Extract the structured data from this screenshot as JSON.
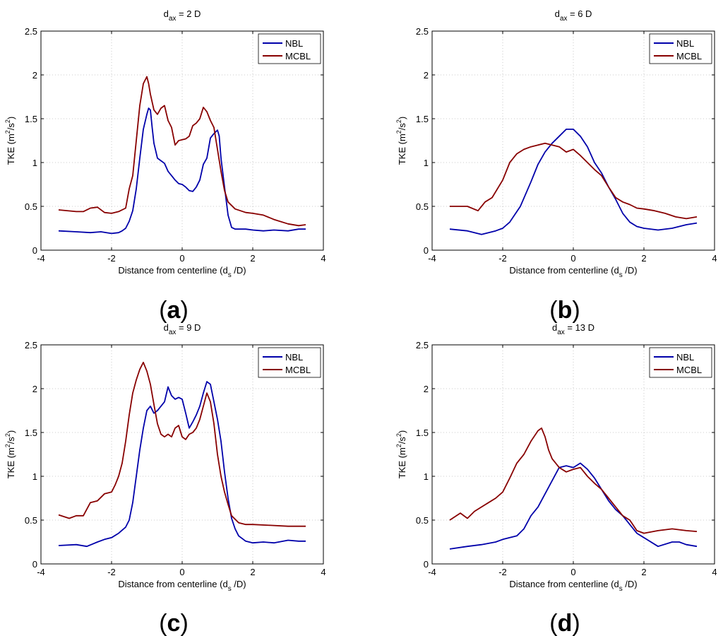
{
  "chart_data": [
    {
      "type": "line",
      "panel_label": "a",
      "title": {
        "base": "d",
        "sub": "ax",
        "rest": " = 2 D"
      },
      "xlabel": {
        "pre": "Distance from centerline (d",
        "sub": "s",
        "post": " /D)"
      },
      "ylabel": {
        "pre": "TKE (m",
        "sup1": "2",
        "mid": "/s",
        "sup2": "2",
        "post": ")"
      },
      "xlim": [
        -4,
        4
      ],
      "ylim": [
        0,
        2.5
      ],
      "xticks": [
        -4,
        -2,
        0,
        2,
        4
      ],
      "yticks": [
        0,
        0.5,
        1,
        1.5,
        2,
        2.5
      ],
      "grid": true,
      "legend_position": "top-right",
      "series": [
        {
          "name": "NBL",
          "color": "#0000aa",
          "x": [
            -3.5,
            -3.0,
            -2.6,
            -2.3,
            -2.0,
            -1.8,
            -1.7,
            -1.6,
            -1.5,
            -1.4,
            -1.3,
            -1.2,
            -1.1,
            -1.0,
            -0.95,
            -0.9,
            -0.85,
            -0.8,
            -0.7,
            -0.6,
            -0.5,
            -0.4,
            -0.3,
            -0.2,
            -0.1,
            0.0,
            0.1,
            0.2,
            0.3,
            0.4,
            0.5,
            0.6,
            0.7,
            0.8,
            0.9,
            1.0,
            1.05,
            1.1,
            1.2,
            1.3,
            1.4,
            1.5,
            1.8,
            2.0,
            2.3,
            2.6,
            3.0,
            3.3,
            3.5
          ],
          "values": [
            0.22,
            0.21,
            0.2,
            0.21,
            0.19,
            0.2,
            0.22,
            0.25,
            0.33,
            0.45,
            0.7,
            1.05,
            1.38,
            1.55,
            1.62,
            1.6,
            1.4,
            1.22,
            1.05,
            1.02,
            0.99,
            0.9,
            0.85,
            0.8,
            0.76,
            0.75,
            0.72,
            0.68,
            0.67,
            0.72,
            0.8,
            0.98,
            1.05,
            1.28,
            1.33,
            1.37,
            1.3,
            1.05,
            0.72,
            0.4,
            0.26,
            0.24,
            0.24,
            0.23,
            0.22,
            0.23,
            0.22,
            0.24,
            0.24
          ]
        },
        {
          "name": "MCBL",
          "color": "#880000",
          "x": [
            -3.5,
            -3.0,
            -2.8,
            -2.6,
            -2.4,
            -2.2,
            -2.0,
            -1.8,
            -1.6,
            -1.5,
            -1.4,
            -1.3,
            -1.2,
            -1.1,
            -1.0,
            -0.95,
            -0.9,
            -0.8,
            -0.7,
            -0.6,
            -0.5,
            -0.4,
            -0.3,
            -0.2,
            -0.1,
            0.0,
            0.1,
            0.2,
            0.3,
            0.4,
            0.5,
            0.6,
            0.7,
            0.8,
            0.9,
            1.0,
            1.1,
            1.2,
            1.3,
            1.5,
            1.8,
            2.0,
            2.3,
            2.6,
            3.0,
            3.3,
            3.5
          ],
          "values": [
            0.46,
            0.44,
            0.44,
            0.48,
            0.49,
            0.43,
            0.42,
            0.44,
            0.48,
            0.7,
            0.85,
            1.25,
            1.65,
            1.9,
            1.98,
            1.9,
            1.78,
            1.6,
            1.55,
            1.62,
            1.65,
            1.48,
            1.4,
            1.2,
            1.25,
            1.26,
            1.27,
            1.3,
            1.42,
            1.45,
            1.5,
            1.63,
            1.58,
            1.48,
            1.4,
            1.15,
            0.9,
            0.68,
            0.55,
            0.47,
            0.43,
            0.42,
            0.4,
            0.35,
            0.3,
            0.28,
            0.29
          ]
        }
      ]
    },
    {
      "type": "line",
      "panel_label": "b",
      "title": {
        "base": "d",
        "sub": "ax",
        "rest": " = 6 D"
      },
      "xlabel": {
        "pre": "Distance from centerline (d",
        "sub": "s",
        "post": " /D)"
      },
      "ylabel": {
        "pre": "TKE (m",
        "sup1": "2",
        "mid": "/s",
        "sup2": "2",
        "post": ")"
      },
      "xlim": [
        -4,
        4
      ],
      "ylim": [
        0,
        2.5
      ],
      "xticks": [
        -4,
        -2,
        0,
        2,
        4
      ],
      "yticks": [
        0,
        0.5,
        1,
        1.5,
        2,
        2.5
      ],
      "grid": true,
      "legend_position": "top-right",
      "series": [
        {
          "name": "NBL",
          "color": "#0000aa",
          "x": [
            -3.5,
            -3.0,
            -2.6,
            -2.2,
            -2.0,
            -1.8,
            -1.5,
            -1.2,
            -1.0,
            -0.8,
            -0.6,
            -0.4,
            -0.2,
            0.0,
            0.2,
            0.4,
            0.6,
            0.8,
            1.0,
            1.2,
            1.4,
            1.6,
            1.8,
            2.0,
            2.4,
            2.8,
            3.2,
            3.5
          ],
          "values": [
            0.24,
            0.22,
            0.18,
            0.22,
            0.25,
            0.32,
            0.5,
            0.78,
            0.98,
            1.12,
            1.22,
            1.3,
            1.38,
            1.38,
            1.3,
            1.18,
            1.0,
            0.88,
            0.72,
            0.58,
            0.42,
            0.32,
            0.27,
            0.25,
            0.23,
            0.25,
            0.29,
            0.31
          ]
        },
        {
          "name": "MCBL",
          "color": "#880000",
          "x": [
            -3.5,
            -3.0,
            -2.7,
            -2.5,
            -2.3,
            -2.0,
            -1.8,
            -1.6,
            -1.4,
            -1.2,
            -1.0,
            -0.8,
            -0.6,
            -0.4,
            -0.2,
            0.0,
            0.2,
            0.4,
            0.6,
            0.8,
            1.0,
            1.2,
            1.4,
            1.6,
            1.8,
            2.0,
            2.3,
            2.6,
            2.9,
            3.2,
            3.5
          ],
          "values": [
            0.5,
            0.5,
            0.45,
            0.55,
            0.6,
            0.8,
            1.0,
            1.1,
            1.15,
            1.18,
            1.2,
            1.22,
            1.2,
            1.18,
            1.12,
            1.15,
            1.08,
            1.0,
            0.92,
            0.85,
            0.72,
            0.6,
            0.55,
            0.52,
            0.48,
            0.47,
            0.45,
            0.42,
            0.38,
            0.36,
            0.38
          ]
        }
      ]
    },
    {
      "type": "line",
      "panel_label": "c",
      "title": {
        "base": "d",
        "sub": "ax",
        "rest": " = 9 D"
      },
      "xlabel": {
        "pre": "Distance from centerline (d",
        "sub": "s",
        "post": " /D)"
      },
      "ylabel": {
        "pre": "TKE (m",
        "sup1": "2",
        "mid": "/s",
        "sup2": "2",
        "post": ")"
      },
      "xlim": [
        -4,
        4
      ],
      "ylim": [
        0,
        2.5
      ],
      "xticks": [
        -4,
        -2,
        0,
        2,
        4
      ],
      "yticks": [
        0,
        0.5,
        1,
        1.5,
        2,
        2.5
      ],
      "grid": true,
      "legend_position": "top-right",
      "series": [
        {
          "name": "NBL",
          "color": "#0000aa",
          "x": [
            -3.5,
            -3.0,
            -2.7,
            -2.4,
            -2.2,
            -2.0,
            -1.8,
            -1.6,
            -1.5,
            -1.4,
            -1.3,
            -1.2,
            -1.1,
            -1.0,
            -0.9,
            -0.8,
            -0.7,
            -0.6,
            -0.5,
            -0.4,
            -0.3,
            -0.2,
            -0.1,
            0.0,
            0.1,
            0.2,
            0.3,
            0.4,
            0.5,
            0.6,
            0.7,
            0.8,
            0.9,
            1.0,
            1.1,
            1.2,
            1.3,
            1.4,
            1.5,
            1.6,
            1.8,
            2.0,
            2.3,
            2.6,
            3.0,
            3.3,
            3.5
          ],
          "values": [
            0.21,
            0.22,
            0.2,
            0.25,
            0.28,
            0.3,
            0.35,
            0.42,
            0.5,
            0.7,
            1.0,
            1.3,
            1.55,
            1.75,
            1.8,
            1.72,
            1.75,
            1.8,
            1.85,
            2.02,
            1.92,
            1.88,
            1.9,
            1.88,
            1.72,
            1.55,
            1.62,
            1.7,
            1.8,
            1.95,
            2.08,
            2.05,
            1.85,
            1.65,
            1.4,
            1.05,
            0.75,
            0.52,
            0.4,
            0.32,
            0.26,
            0.24,
            0.25,
            0.24,
            0.27,
            0.26,
            0.26
          ]
        },
        {
          "name": "MCBL",
          "color": "#880000",
          "x": [
            -3.5,
            -3.2,
            -3.0,
            -2.8,
            -2.6,
            -2.4,
            -2.2,
            -2.0,
            -1.9,
            -1.8,
            -1.7,
            -1.6,
            -1.5,
            -1.4,
            -1.3,
            -1.2,
            -1.1,
            -1.0,
            -0.9,
            -0.8,
            -0.7,
            -0.6,
            -0.5,
            -0.4,
            -0.3,
            -0.2,
            -0.1,
            0.0,
            0.1,
            0.2,
            0.3,
            0.4,
            0.5,
            0.6,
            0.7,
            0.8,
            0.9,
            1.0,
            1.1,
            1.2,
            1.3,
            1.4,
            1.6,
            1.8,
            2.0,
            2.5,
            3.0,
            3.5
          ],
          "values": [
            0.56,
            0.52,
            0.55,
            0.55,
            0.7,
            0.72,
            0.8,
            0.82,
            0.9,
            1.0,
            1.15,
            1.4,
            1.7,
            1.95,
            2.1,
            2.22,
            2.3,
            2.2,
            2.05,
            1.82,
            1.6,
            1.48,
            1.45,
            1.48,
            1.45,
            1.55,
            1.58,
            1.45,
            1.42,
            1.48,
            1.5,
            1.55,
            1.65,
            1.8,
            1.95,
            1.85,
            1.6,
            1.25,
            1.0,
            0.82,
            0.68,
            0.55,
            0.47,
            0.45,
            0.45,
            0.44,
            0.43,
            0.43
          ]
        }
      ]
    },
    {
      "type": "line",
      "panel_label": "d",
      "title": {
        "base": "d",
        "sub": "ax",
        "rest": " = 13 D"
      },
      "xlabel": {
        "pre": "Distance from centerline (d",
        "sub": "s",
        "post": " /D)"
      },
      "ylabel": {
        "pre": "TKE (m",
        "sup1": "2",
        "mid": "/s",
        "sup2": "2",
        "post": ")"
      },
      "xlim": [
        -4,
        4
      ],
      "ylim": [
        0,
        2.5
      ],
      "xticks": [
        -4,
        -2,
        0,
        2,
        4
      ],
      "yticks": [
        0,
        0.5,
        1,
        1.5,
        2,
        2.5
      ],
      "grid": true,
      "legend_position": "top-right",
      "series": [
        {
          "name": "NBL",
          "color": "#0000aa",
          "x": [
            -3.5,
            -3.0,
            -2.6,
            -2.2,
            -2.0,
            -1.8,
            -1.6,
            -1.4,
            -1.2,
            -1.0,
            -0.8,
            -0.6,
            -0.4,
            -0.2,
            0.0,
            0.2,
            0.4,
            0.6,
            0.8,
            1.0,
            1.2,
            1.4,
            1.6,
            1.8,
            2.0,
            2.4,
            2.8,
            3.0,
            3.2,
            3.5
          ],
          "values": [
            0.17,
            0.2,
            0.22,
            0.25,
            0.28,
            0.3,
            0.32,
            0.4,
            0.55,
            0.65,
            0.8,
            0.95,
            1.1,
            1.12,
            1.1,
            1.15,
            1.08,
            0.98,
            0.85,
            0.72,
            0.62,
            0.55,
            0.45,
            0.35,
            0.3,
            0.2,
            0.25,
            0.25,
            0.22,
            0.2
          ]
        },
        {
          "name": "MCBL",
          "color": "#880000",
          "x": [
            -3.5,
            -3.2,
            -3.0,
            -2.8,
            -2.6,
            -2.4,
            -2.2,
            -2.0,
            -1.8,
            -1.6,
            -1.4,
            -1.2,
            -1.0,
            -0.9,
            -0.8,
            -0.7,
            -0.6,
            -0.4,
            -0.2,
            0.0,
            0.2,
            0.4,
            0.6,
            0.8,
            1.0,
            1.2,
            1.4,
            1.6,
            1.8,
            2.0,
            2.4,
            2.8,
            3.2,
            3.5
          ],
          "values": [
            0.5,
            0.58,
            0.52,
            0.6,
            0.65,
            0.7,
            0.75,
            0.82,
            0.98,
            1.15,
            1.25,
            1.4,
            1.52,
            1.55,
            1.45,
            1.3,
            1.2,
            1.1,
            1.05,
            1.08,
            1.1,
            1.0,
            0.92,
            0.85,
            0.75,
            0.65,
            0.55,
            0.5,
            0.38,
            0.35,
            0.38,
            0.4,
            0.38,
            0.37
          ]
        }
      ]
    }
  ]
}
